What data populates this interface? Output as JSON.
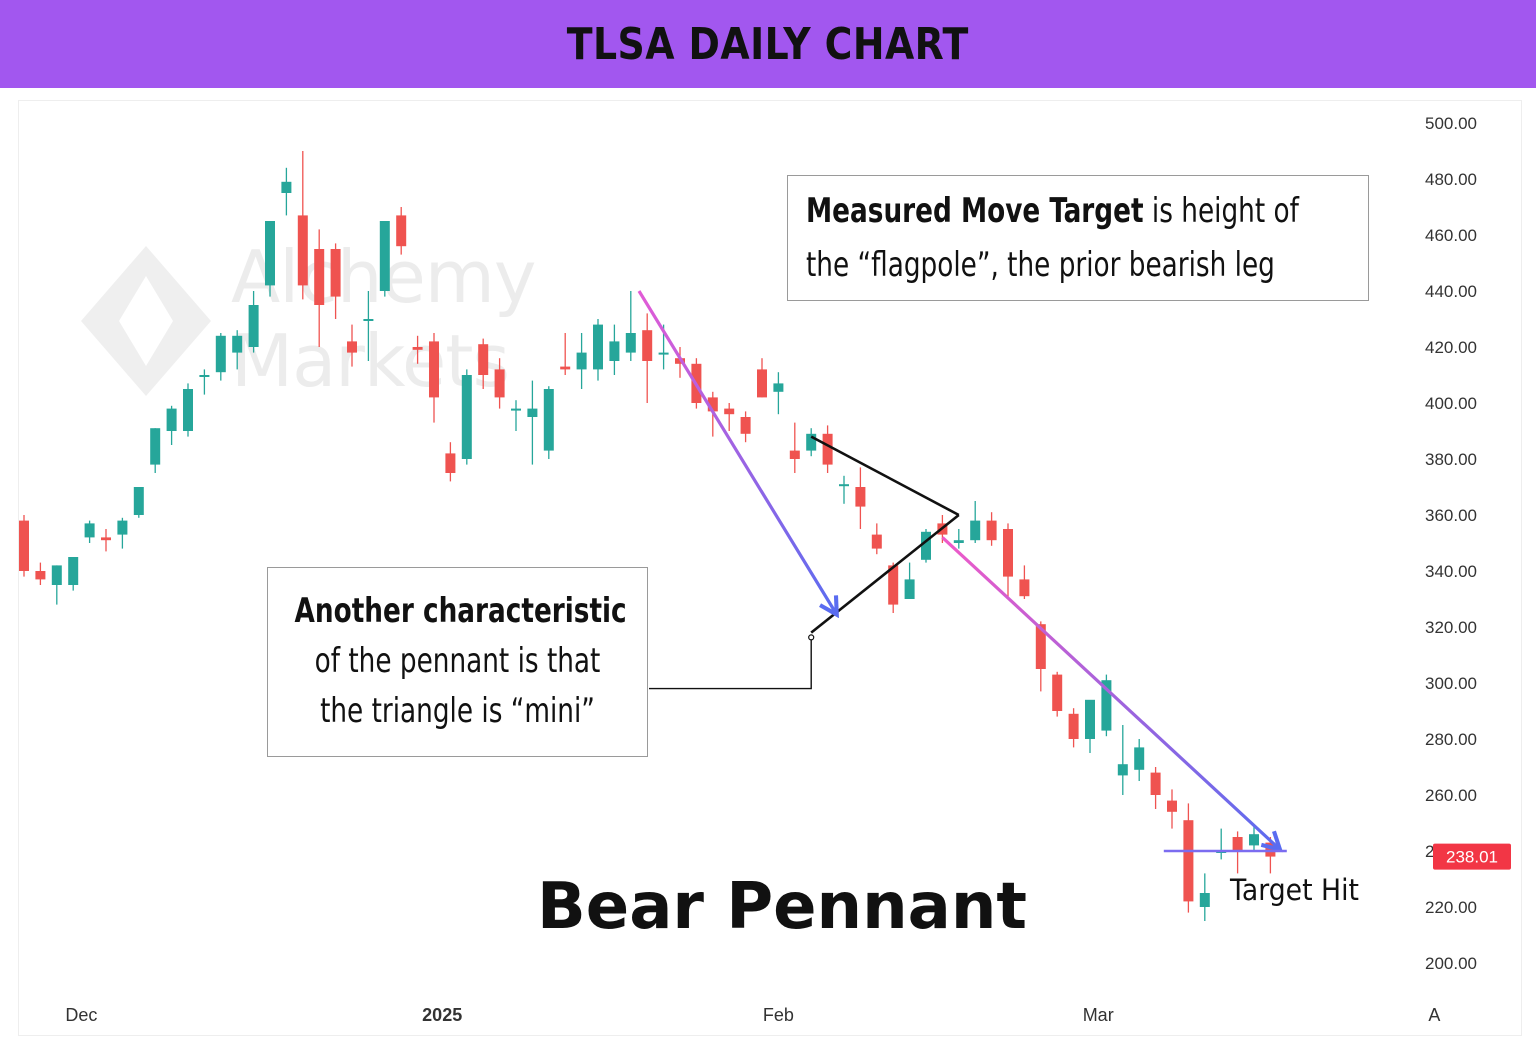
{
  "header": {
    "title": "TLSA DAILY CHART"
  },
  "watermark": {
    "line1": "Alchemy",
    "line2": "Markets"
  },
  "annotations": {
    "measured_move": {
      "bold": "Measured Move Target",
      "rest_line1": " is height of",
      "line2": "the “flagpole”, the prior bearish leg"
    },
    "characteristic": {
      "line1": "Another characteristic",
      "line2": "of the pennant is that",
      "line3": "the triangle is “mini”"
    },
    "pattern_name": "Bear Pennant",
    "target_label": "Target Hit"
  },
  "colors": {
    "bullish": "#26a69a",
    "bearish": "#ef5350",
    "price_badge": "#f23645",
    "target_line": "#7b6cf0",
    "arrow_head": "#5a6cf0"
  },
  "chart_data": {
    "type": "candlestick",
    "ylim": [
      190,
      510
    ],
    "y_ticks": [
      "500.00",
      "480.00",
      "460.00",
      "440.00",
      "420.00",
      "400.00",
      "380.00",
      "360.00",
      "340.00",
      "320.00",
      "300.00",
      "280.00",
      "260.00",
      "240.00",
      "220.00",
      "200.00"
    ],
    "x_labels": [
      {
        "label": "Dec",
        "index": 3.5,
        "bold": false
      },
      {
        "label": "2025",
        "index": 25.5,
        "bold": true
      },
      {
        "label": "Feb",
        "index": 46,
        "bold": false
      },
      {
        "label": "Mar",
        "index": 65.5,
        "bold": false
      },
      {
        "label": "A",
        "index": 86,
        "bold": false
      }
    ],
    "last_price": "238.01",
    "candles": [
      {
        "o": 358,
        "h": 360,
        "l": 338,
        "c": 340
      },
      {
        "o": 340,
        "h": 343,
        "l": 335,
        "c": 337
      },
      {
        "o": 335,
        "h": 342,
        "l": 328,
        "c": 342
      },
      {
        "o": 335,
        "h": 345,
        "l": 333,
        "c": 345
      },
      {
        "o": 352,
        "h": 358,
        "l": 350,
        "c": 357
      },
      {
        "o": 352,
        "h": 355,
        "l": 347,
        "c": 351
      },
      {
        "o": 353,
        "h": 359,
        "l": 348,
        "c": 358
      },
      {
        "o": 360,
        "h": 370,
        "l": 359,
        "c": 370
      },
      {
        "o": 378,
        "h": 391,
        "l": 375,
        "c": 391
      },
      {
        "o": 390,
        "h": 399,
        "l": 385,
        "c": 398
      },
      {
        "o": 390,
        "h": 407,
        "l": 388,
        "c": 405
      },
      {
        "o": 410,
        "h": 412,
        "l": 403,
        "c": 410
      },
      {
        "o": 411,
        "h": 425,
        "l": 408,
        "c": 424
      },
      {
        "o": 418,
        "h": 426,
        "l": 412,
        "c": 424
      },
      {
        "o": 420,
        "h": 440,
        "l": 418,
        "c": 435
      },
      {
        "o": 442,
        "h": 465,
        "l": 438,
        "c": 465
      },
      {
        "o": 475,
        "h": 484,
        "l": 467,
        "c": 479
      },
      {
        "o": 467,
        "h": 490,
        "l": 437,
        "c": 442
      },
      {
        "o": 455,
        "h": 462,
        "l": 420,
        "c": 435
      },
      {
        "o": 455,
        "h": 457,
        "l": 430,
        "c": 438
      },
      {
        "o": 422,
        "h": 428,
        "l": 413,
        "c": 418
      },
      {
        "o": 430,
        "h": 440,
        "l": 415,
        "c": 430
      },
      {
        "o": 440,
        "h": 465,
        "l": 438,
        "c": 465
      },
      {
        "o": 467,
        "h": 470,
        "l": 453,
        "c": 456
      },
      {
        "o": 420,
        "h": 424,
        "l": 414,
        "c": 419
      },
      {
        "o": 422,
        "h": 425,
        "l": 393,
        "c": 402
      },
      {
        "o": 382,
        "h": 386,
        "l": 372,
        "c": 375
      },
      {
        "o": 380,
        "h": 412,
        "l": 378,
        "c": 410
      },
      {
        "o": 421,
        "h": 423,
        "l": 405,
        "c": 410
      },
      {
        "o": 412,
        "h": 416,
        "l": 398,
        "c": 402
      },
      {
        "o": 398,
        "h": 401,
        "l": 390,
        "c": 398
      },
      {
        "o": 395,
        "h": 408,
        "l": 378,
        "c": 398
      },
      {
        "o": 383,
        "h": 406,
        "l": 380,
        "c": 405
      },
      {
        "o": 413,
        "h": 425,
        "l": 410,
        "c": 412
      },
      {
        "o": 412,
        "h": 425,
        "l": 405,
        "c": 418
      },
      {
        "o": 412,
        "h": 430,
        "l": 408,
        "c": 428
      },
      {
        "o": 415,
        "h": 428,
        "l": 410,
        "c": 422
      },
      {
        "o": 418,
        "h": 440,
        "l": 415,
        "c": 425
      },
      {
        "o": 426,
        "h": 432,
        "l": 400,
        "c": 415
      },
      {
        "o": 418,
        "h": 428,
        "l": 412,
        "c": 418
      },
      {
        "o": 416,
        "h": 420,
        "l": 409,
        "c": 414
      },
      {
        "o": 414,
        "h": 416,
        "l": 398,
        "c": 400
      },
      {
        "o": 402,
        "h": 404,
        "l": 388,
        "c": 397
      },
      {
        "o": 398,
        "h": 400,
        "l": 390,
        "c": 396
      },
      {
        "o": 395,
        "h": 397,
        "l": 386,
        "c": 389
      },
      {
        "o": 412,
        "h": 416,
        "l": 402,
        "c": 402
      },
      {
        "o": 404,
        "h": 411,
        "l": 396,
        "c": 407
      },
      {
        "o": 383,
        "h": 393,
        "l": 375,
        "c": 380
      },
      {
        "o": 383,
        "h": 391,
        "l": 381,
        "c": 389
      },
      {
        "o": 389,
        "h": 392,
        "l": 375,
        "c": 378
      },
      {
        "o": 371,
        "h": 374,
        "l": 364,
        "c": 371
      },
      {
        "o": 370,
        "h": 377,
        "l": 355,
        "c": 363
      },
      {
        "o": 353,
        "h": 357,
        "l": 346,
        "c": 348
      },
      {
        "o": 342,
        "h": 343,
        "l": 325,
        "c": 328
      },
      {
        "o": 330,
        "h": 343,
        "l": 330,
        "c": 337
      },
      {
        "o": 344,
        "h": 355,
        "l": 343,
        "c": 354
      },
      {
        "o": 357,
        "h": 360,
        "l": 350,
        "c": 353
      },
      {
        "o": 350,
        "h": 355,
        "l": 348,
        "c": 351
      },
      {
        "o": 351,
        "h": 365,
        "l": 350,
        "c": 358
      },
      {
        "o": 358,
        "h": 361,
        "l": 349,
        "c": 351
      },
      {
        "o": 355,
        "h": 357,
        "l": 330,
        "c": 338
      },
      {
        "o": 337,
        "h": 342,
        "l": 330,
        "c": 331
      },
      {
        "o": 321,
        "h": 322,
        "l": 297,
        "c": 305
      },
      {
        "o": 303,
        "h": 304,
        "l": 288,
        "c": 290
      },
      {
        "o": 289,
        "h": 291,
        "l": 277,
        "c": 280
      },
      {
        "o": 280,
        "h": 293,
        "l": 275,
        "c": 294
      },
      {
        "o": 283,
        "h": 303,
        "l": 281,
        "c": 301
      },
      {
        "o": 267,
        "h": 285,
        "l": 260,
        "c": 271
      },
      {
        "o": 269,
        "h": 280,
        "l": 265,
        "c": 277
      },
      {
        "o": 268,
        "h": 270,
        "l": 255,
        "c": 260
      },
      {
        "o": 258,
        "h": 262,
        "l": 248,
        "c": 254
      },
      {
        "o": 251,
        "h": 257,
        "l": 218,
        "c": 222
      },
      {
        "o": 220,
        "h": 232,
        "l": 215,
        "c": 225
      },
      {
        "o": 240,
        "h": 248,
        "l": 237,
        "c": 240
      },
      {
        "o": 245,
        "h": 247,
        "l": 232,
        "c": 240
      },
      {
        "o": 242,
        "h": 249,
        "l": 240,
        "c": 246
      },
      {
        "o": 243,
        "h": 245,
        "l": 232,
        "c": 238
      }
    ],
    "drawings": {
      "flagpole_arrow": {
        "from": [
          37.5,
          440
        ],
        "to": [
          49.5,
          325
        ]
      },
      "pennant_upper": {
        "from": [
          48,
          388
        ],
        "to": [
          57,
          360
        ]
      },
      "pennant_lower": {
        "from": [
          48,
          318
        ],
        "to": [
          57,
          360
        ]
      },
      "breakdown_arrow": {
        "from": [
          56,
          352
        ],
        "to": [
          76.5,
          241
        ]
      },
      "target_line": {
        "from": [
          69.5,
          240
        ],
        "to": [
          77,
          240
        ]
      },
      "callout_leader": {
        "x_index": 48,
        "y_top": 317,
        "y_bottom": 298
      }
    }
  }
}
